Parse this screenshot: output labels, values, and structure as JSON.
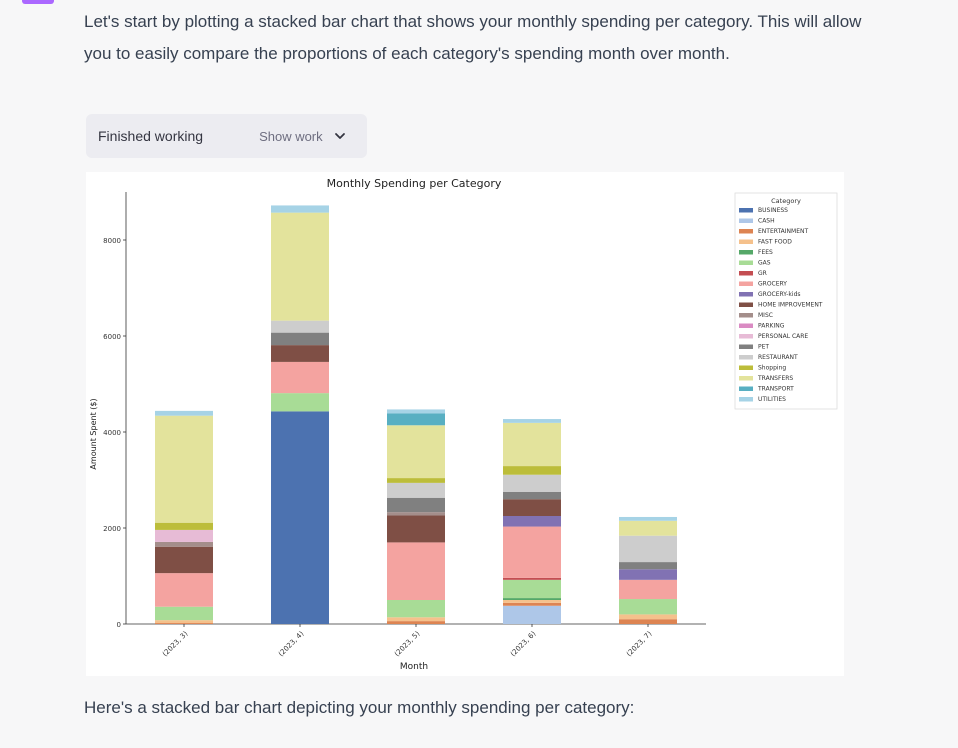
{
  "message": {
    "intro": "Let's start by plotting a stacked bar chart that shows your monthly spending per category. This will allow you to easily compare the proportions of each category's spending month over month.",
    "work_status": "Finished working",
    "show_work_label": "Show work",
    "caption": "Here's a stacked bar chart depicting your monthly spending per category:"
  },
  "icons": {
    "expand": "chevron-down-icon"
  },
  "colors": {
    "assistant_avatar": "#ab68ff",
    "page_background": "#f7f7f8",
    "work_panel": "#ececf1"
  },
  "chart_data": {
    "type": "bar",
    "stacked": true,
    "title": "Monthly Spending per Category",
    "xlabel": "Month",
    "ylabel": "Amount Spent ($)",
    "ylim": [
      0,
      9000
    ],
    "yticks": [
      0,
      2000,
      4000,
      6000,
      8000
    ],
    "categories": [
      "(2023, 3)",
      "(2023, 4)",
      "(2023, 5)",
      "(2023, 6)",
      "(2023, 7)"
    ],
    "legend_title": "Category",
    "legend_position": "top-right",
    "grid": false,
    "series": [
      {
        "name": "BUSINESS",
        "color": "#4c72b0",
        "values": [
          0,
          4430,
          0,
          0,
          0
        ]
      },
      {
        "name": "CASH",
        "color": "#aec7e8",
        "values": [
          0,
          0,
          0,
          380,
          0
        ]
      },
      {
        "name": "ENTERTAINMENT",
        "color": "#dd8452",
        "values": [
          20,
          0,
          60,
          60,
          100
        ]
      },
      {
        "name": "FAST FOOD",
        "color": "#f5c18c",
        "values": [
          60,
          0,
          80,
          60,
          100
        ]
      },
      {
        "name": "FEES",
        "color": "#55a868",
        "values": [
          0,
          0,
          0,
          40,
          0
        ]
      },
      {
        "name": "GAS",
        "color": "#a8dc96",
        "values": [
          280,
          380,
          360,
          380,
          320
        ]
      },
      {
        "name": "GR",
        "color": "#c44e52",
        "values": [
          0,
          0,
          0,
          40,
          0
        ]
      },
      {
        "name": "GROCERY",
        "color": "#f4a3a0",
        "values": [
          700,
          650,
          1200,
          1070,
          400
        ]
      },
      {
        "name": "GROCERY-kids",
        "color": "#8172b3",
        "values": [
          0,
          0,
          0,
          220,
          220
        ]
      },
      {
        "name": "HOME IMPROVEMENT",
        "color": "#7f4f45",
        "values": [
          550,
          350,
          560,
          350,
          0
        ]
      },
      {
        "name": "MISC",
        "color": "#a48e8b",
        "values": [
          100,
          0,
          70,
          0,
          0
        ]
      },
      {
        "name": "PARKING",
        "color": "#da8bc3",
        "values": [
          0,
          0,
          0,
          0,
          0
        ]
      },
      {
        "name": "PERSONAL CARE",
        "color": "#e7bbd6",
        "values": [
          250,
          0,
          0,
          0,
          0
        ]
      },
      {
        "name": "PET",
        "color": "#808080",
        "values": [
          0,
          260,
          300,
          150,
          150
        ]
      },
      {
        "name": "RESTAURANT",
        "color": "#cdcdcd",
        "values": [
          0,
          250,
          310,
          360,
          550
        ]
      },
      {
        "name": "Shopping",
        "color": "#bcbd3a",
        "values": [
          150,
          0,
          100,
          180,
          0
        ]
      },
      {
        "name": "TRANSFERS",
        "color": "#e3e39c",
        "values": [
          2230,
          2250,
          1100,
          900,
          310
        ]
      },
      {
        "name": "TRANSPORT",
        "color": "#58afc2",
        "values": [
          0,
          0,
          250,
          0,
          0
        ]
      },
      {
        "name": "UTILITIES",
        "color": "#a6d3e6",
        "values": [
          100,
          150,
          80,
          80,
          80
        ]
      }
    ]
  }
}
